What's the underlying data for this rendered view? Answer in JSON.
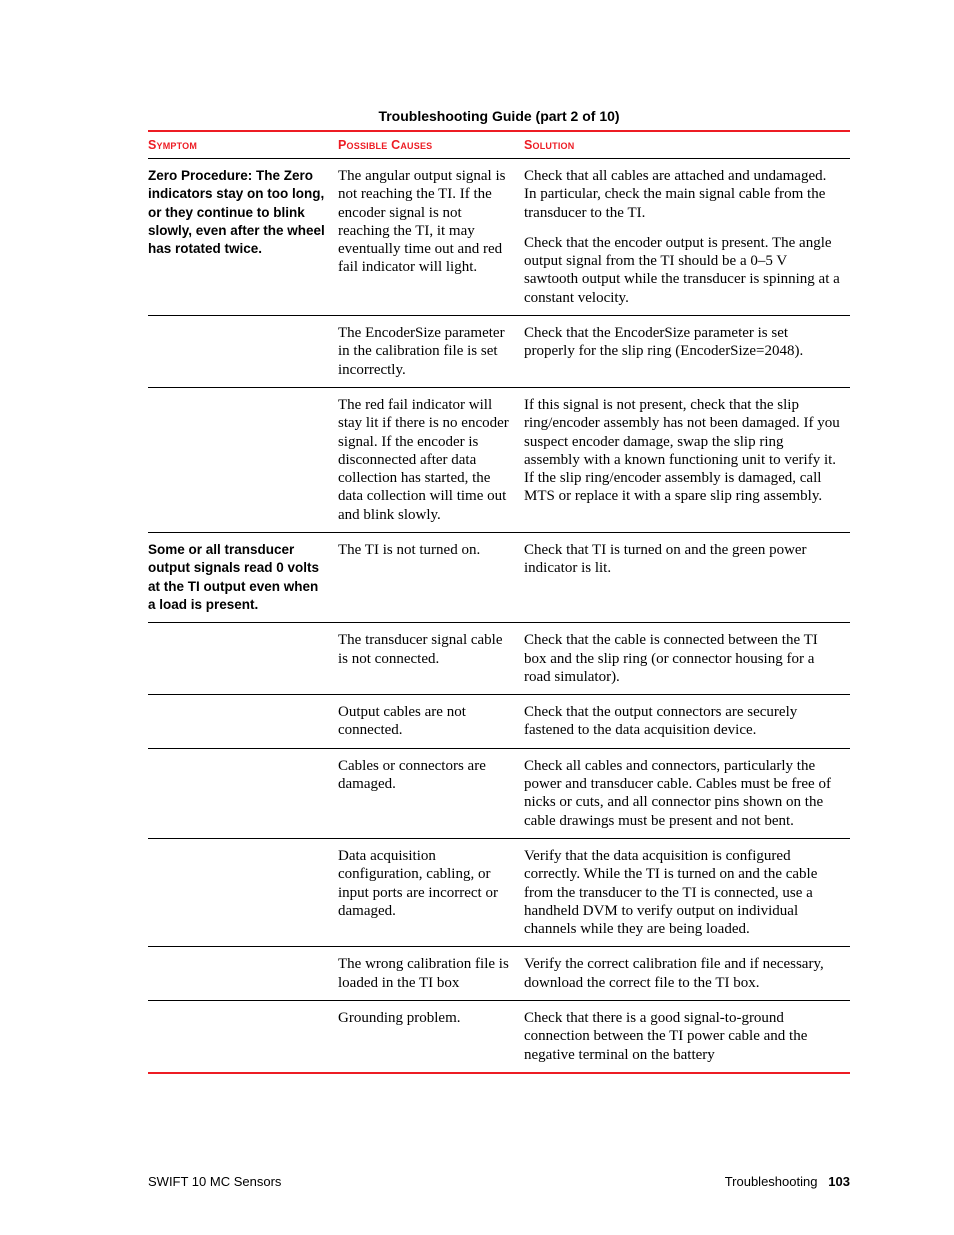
{
  "caption": "Troubleshooting Guide  (part 2 of 10)",
  "headers": {
    "c1": "Symptom",
    "c2": "Possible Causes",
    "c3": "Solution"
  },
  "colors": {
    "accent": "#ed1c24",
    "rule": "#000000",
    "text": "#000000",
    "bg": "#ffffff"
  },
  "rows": [
    {
      "symptom": "Zero Procedure: The Zero indicators stay on too long, or they continue to blink slowly, even after the wheel has rotated twice.",
      "cause": "The angular output signal is not reaching the TI. If the encoder signal is not reaching the TI, it may eventually time out and red fail indicator will light.",
      "solutions": [
        "Check that all cables are attached and undamaged. In particular, check the main signal cable from the transducer to the TI.",
        "Check that the encoder output is present. The angle output signal from the TI should be a 0–5 V sawtooth output while the transducer is spinning at a constant velocity."
      ]
    },
    {
      "symptom": "",
      "cause": "The EncoderSize parameter in the calibration file is set incorrectly.",
      "solutions": [
        "Check that the EncoderSize parameter is set properly for the slip ring (EncoderSize=2048)."
      ]
    },
    {
      "symptom": "",
      "cause": "The red fail indicator will stay lit if there is no encoder signal. If the encoder is disconnected after data collection has started, the data collection will time out and blink slowly.",
      "solutions": [
        "If this signal is not present, check that the slip ring/encoder assembly has not been damaged. If you suspect encoder damage, swap the slip ring assembly with a known functioning unit to verify it. If the slip ring/encoder assembly is damaged, call MTS or replace it with a spare slip ring assembly."
      ]
    },
    {
      "symptom": "Some or all transducer output signals read 0 volts at the TI output even when a load is present.",
      "cause": "The TI is not turned on.",
      "solutions": [
        "Check that TI is turned on and the green power indicator is lit."
      ]
    },
    {
      "symptom": "",
      "cause": "The transducer signal cable is not connected.",
      "solutions": [
        "Check that the cable is connected between the TI box and the slip ring (or connector housing for a road simulator)."
      ]
    },
    {
      "symptom": "",
      "cause": "Output cables are not connected.",
      "solutions": [
        "Check that the output connectors are securely fastened to the data acquisition device."
      ]
    },
    {
      "symptom": "",
      "cause": "Cables or connectors are damaged.",
      "solutions": [
        "Check all cables and connectors, particularly the power and transducer cable. Cables must be free of nicks or cuts, and all connector pins shown on the cable drawings must be present and not bent."
      ]
    },
    {
      "symptom": "",
      "cause": "Data acquisition configuration, cabling, or input ports are incorrect or damaged.",
      "solutions": [
        "Verify that the data acquisition is configured correctly. While the TI is turned on and the cable from the transducer to the TI is connected, use a handheld DVM to verify output on individual channels while they are being loaded."
      ]
    },
    {
      "symptom": "",
      "cause": "The wrong calibration file is loaded in the TI box",
      "solutions": [
        "Verify the correct calibration file and if necessary, download the correct file to the TI box."
      ]
    },
    {
      "symptom": "",
      "cause": "Grounding problem.",
      "solutions": [
        "Check that there is a good signal-to-ground connection between the TI power cable and the negative terminal on the battery"
      ]
    }
  ],
  "footer": {
    "left": "SWIFT 10 MC Sensors",
    "right_label": "Troubleshooting",
    "page": "103"
  }
}
